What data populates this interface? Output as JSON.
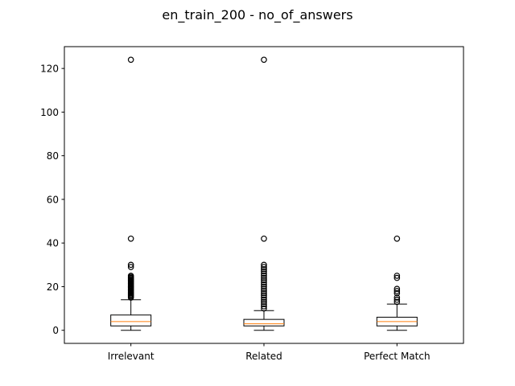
{
  "chart_data": {
    "type": "box",
    "title": "en_train_200 - no_of_answers",
    "xlabel": "",
    "ylabel": "",
    "ylim": [
      -6,
      130
    ],
    "yticks": [
      0,
      20,
      40,
      60,
      80,
      100,
      120
    ],
    "grid": false,
    "categories": [
      "Irrelevant",
      "Related",
      "Perfect Match"
    ],
    "boxes": [
      {
        "category": "Irrelevant",
        "whisker_low": 0,
        "q1": 2,
        "median": 4,
        "q3": 7,
        "whisker_high": 14,
        "outliers": [
          124,
          42,
          30,
          29,
          25,
          24.5,
          24,
          23.5,
          23,
          22.5,
          22,
          21.5,
          21,
          20.5,
          20,
          19.5,
          19,
          18.5,
          18,
          17.5,
          17,
          16.5,
          16,
          15.5,
          15
        ]
      },
      {
        "category": "Related",
        "whisker_low": 0,
        "q1": 2,
        "median": 3,
        "q3": 5,
        "whisker_high": 9,
        "outliers": [
          124,
          42,
          30,
          29,
          28,
          27,
          26,
          25,
          24,
          23,
          22,
          21,
          20,
          19,
          18,
          17,
          16,
          15,
          14,
          13,
          12,
          11,
          10
        ]
      },
      {
        "category": "Perfect Match",
        "whisker_low": 0,
        "q1": 2,
        "median": 4,
        "q3": 6,
        "whisker_high": 12,
        "outliers": [
          42,
          25,
          24,
          19,
          18,
          17,
          15,
          14,
          13
        ]
      }
    ],
    "colors": {
      "box": "#000000",
      "median": "#ff7f0e",
      "outlier": "#000000"
    }
  }
}
